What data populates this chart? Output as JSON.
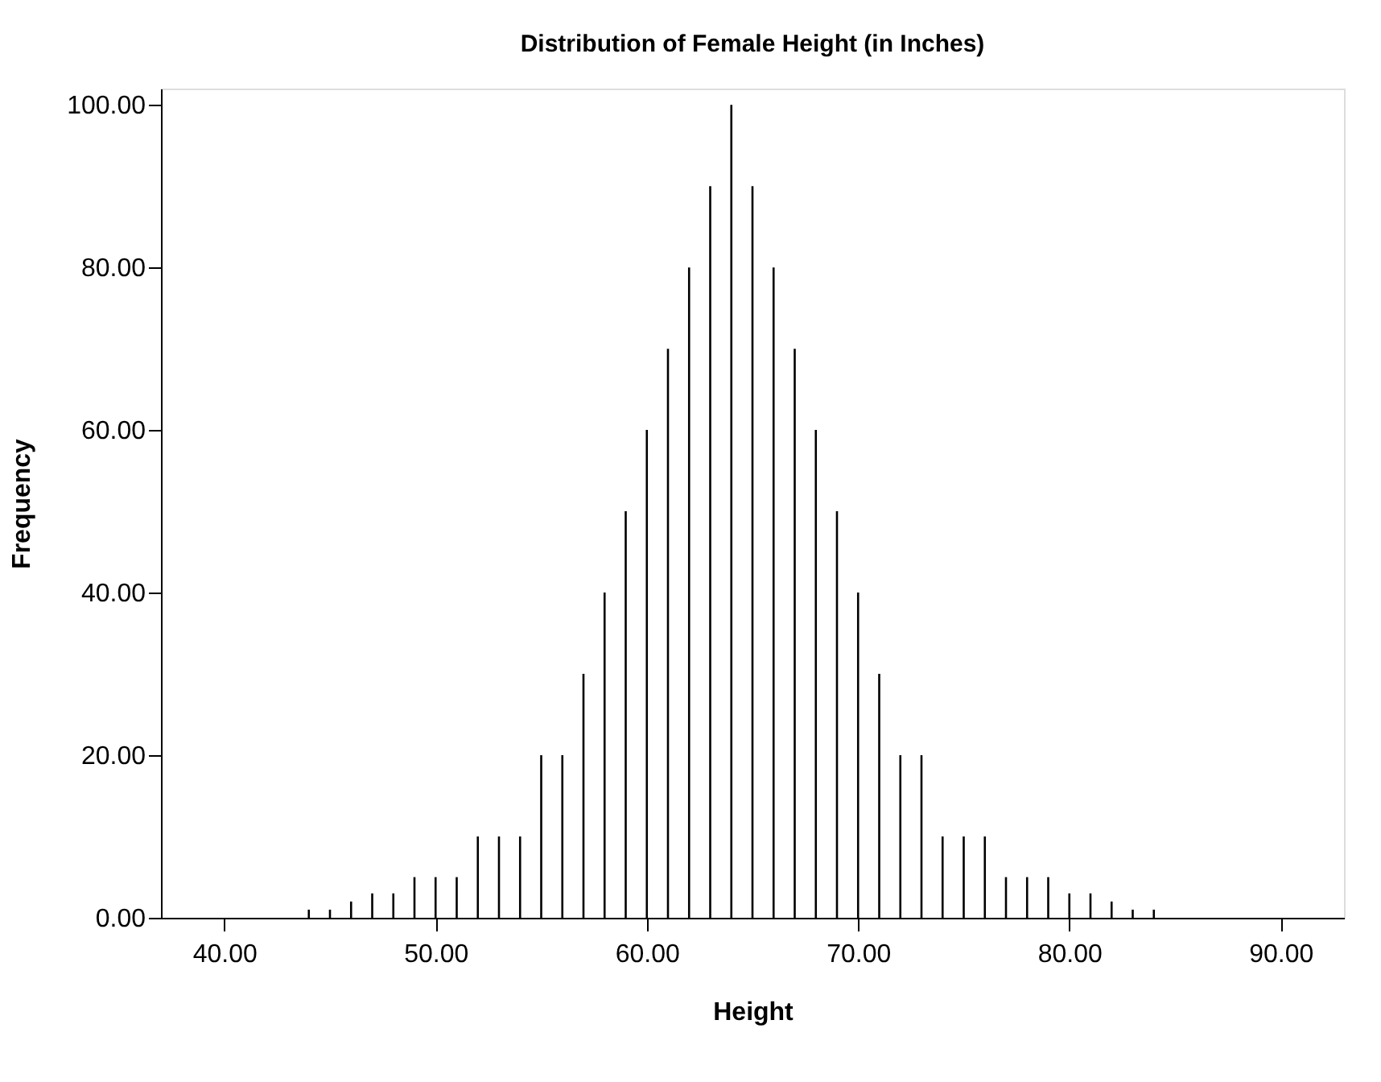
{
  "chart_data": {
    "type": "bar",
    "title": "Distribution of Female Height (in Inches)",
    "xlabel": "Height",
    "ylabel": "Frequency",
    "x": [
      44,
      45,
      46,
      47,
      48,
      49,
      50,
      51,
      52,
      53,
      54,
      55,
      56,
      57,
      58,
      59,
      60,
      61,
      62,
      63,
      64,
      65,
      66,
      67,
      68,
      69,
      70,
      71,
      72,
      73,
      74,
      75,
      76,
      77,
      78,
      79,
      80,
      81,
      82,
      83,
      84
    ],
    "series": [
      {
        "color": "#000000",
        "values": [
          1,
          1,
          2,
          3,
          3,
          5,
          5,
          5,
          10,
          10,
          10,
          20,
          20,
          30,
          40,
          50,
          60,
          70,
          80,
          90,
          100,
          90,
          80,
          70,
          60,
          50,
          40,
          30,
          20,
          20,
          10,
          10,
          10,
          5,
          5,
          5,
          3,
          3,
          2,
          1,
          1
        ]
      }
    ],
    "xlim": [
      37,
      93
    ],
    "ylim": [
      0,
      102
    ],
    "xticks": [
      {
        "value": 40,
        "label": "40.00"
      },
      {
        "value": 50,
        "label": "50.00"
      },
      {
        "value": 60,
        "label": "60.00"
      },
      {
        "value": 70,
        "label": "70.00"
      },
      {
        "value": 80,
        "label": "80.00"
      },
      {
        "value": 90,
        "label": "90.00"
      }
    ],
    "yticks": [
      {
        "value": 0,
        "label": "0.00"
      },
      {
        "value": 20,
        "label": "20.00"
      },
      {
        "value": 40,
        "label": "40.00"
      },
      {
        "value": 60,
        "label": "60.00"
      },
      {
        "value": 80,
        "label": "80.00"
      },
      {
        "value": 100,
        "label": "100.00"
      }
    ],
    "grid": false
  }
}
